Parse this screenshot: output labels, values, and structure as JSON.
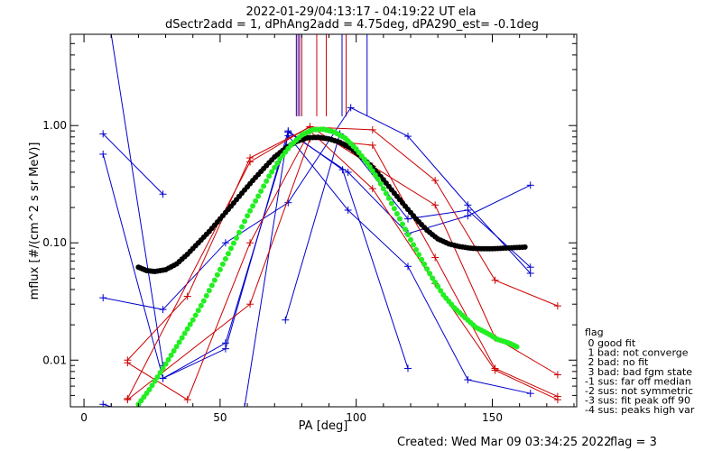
{
  "chart_data": {
    "type": "line",
    "title": "2022-01-29/04:13:17 - 04:19:22 UT ela",
    "subtitle": "dSectr2add = 1, dPhAng2add = 4.75deg, dPA290_est=  -0.1deg",
    "xlabel": "PA [deg]",
    "ylabel": "mflux [#/(cm^2 s sr MeV)]",
    "xlim": [
      -5,
      181
    ],
    "ylim": [
      0.004,
      6.0
    ],
    "yscale": "log",
    "xticks": [
      0,
      50,
      100,
      150
    ],
    "xtick_labels": [
      "0",
      "50",
      "100",
      "150"
    ],
    "yticks": [
      0.01,
      0.1,
      1.0
    ],
    "ytick_labels": [
      "0.01",
      "0.10",
      "1.00"
    ],
    "grid": false,
    "footer_created": "Created: Wed Mar 09 03:34:25 2022",
    "footer_flag": "flag = 3",
    "legend": {
      "placement": "bottom-right",
      "title": "flag",
      "entries": [
        " 0 good fit",
        " 1 bad: not converge",
        " 2 bad: no fit",
        " 3 bad: bad fgm state",
        "-1 sus: far off median",
        "-2 sus: not symmetric",
        "-3 sus: fit peak off 90",
        "-4 sus: peaks high var"
      ]
    },
    "vlines": [
      {
        "x": 78.0,
        "color": "#0000cc"
      },
      {
        "x": 78.6,
        "color": "#cc0000"
      },
      {
        "x": 79.2,
        "color": "#0000cc"
      },
      {
        "x": 80.0,
        "color": "#cc0000"
      },
      {
        "x": 85.5,
        "color": "#cc0000"
      },
      {
        "x": 89.0,
        "color": "#cc0000"
      },
      {
        "x": 94.8,
        "color": "#0000cc"
      },
      {
        "x": 96.3,
        "color": "#cc0000"
      },
      {
        "x": 104.0,
        "color": "#0000cc"
      }
    ],
    "series": [
      {
        "color": "#0000cc",
        "x": [
          7,
          29
        ],
        "y": [
          0.85,
          0.26
        ]
      },
      {
        "color": "#0000cc",
        "x": [
          7,
          29,
          52,
          75,
          95,
          119
        ],
        "y": [
          0.57,
          0.007,
          0.0125,
          0.9,
          0.42,
          0.0085
        ]
      },
      {
        "color": "#0000cc",
        "x": [
          7,
          29,
          52,
          75,
          98,
          119,
          141,
          164
        ],
        "y": [
          0.034,
          0.027,
          0.1,
          0.22,
          1.42,
          0.81,
          0.21,
          0.055
        ]
      },
      {
        "color": "#0000cc",
        "x": [
          10,
          29
        ],
        "y": [
          6.0,
          0.009
        ]
      },
      {
        "color": "#0000cc",
        "x": [
          7,
          10
        ],
        "y": [
          0.0042,
          0.004
        ]
      },
      {
        "color": "#0000cc",
        "x": [
          29,
          52,
          75,
          97,
          119,
          141,
          164
        ],
        "y": [
          0.007,
          0.014,
          0.82,
          0.19,
          0.063,
          0.0068,
          0.0052
        ]
      },
      {
        "color": "#0000cc",
        "x": [
          59,
          75,
          97,
          119,
          141,
          164
        ],
        "y": [
          0.004,
          0.88,
          0.4,
          0.12,
          0.17,
          0.31
        ]
      },
      {
        "color": "#0000cc",
        "x": [
          74,
          94,
          119,
          141,
          164
        ],
        "y": [
          0.022,
          0.85,
          0.16,
          0.19,
          0.062
        ]
      },
      {
        "color": "#cc0000",
        "x": [
          16,
          38,
          61,
          83,
          106,
          129,
          151,
          174
        ],
        "y": [
          0.01,
          0.035,
          0.53,
          0.97,
          0.92,
          0.34,
          0.048,
          0.029
        ]
      },
      {
        "color": "#cc0000",
        "x": [
          16,
          38,
          61,
          83,
          106,
          129,
          151,
          174
        ],
        "y": [
          0.0095,
          0.0046,
          0.1,
          0.9,
          0.29,
          0.045,
          0.0082,
          0.0046
        ]
      },
      {
        "color": "#cc0000",
        "x": [
          16,
          61,
          83,
          106,
          129,
          151,
          174
        ],
        "y": [
          0.0047,
          0.49,
          0.98,
          0.45,
          0.21,
          0.0155,
          0.0075
        ]
      },
      {
        "color": "#cc0000",
        "x": [
          16,
          61,
          83,
          106,
          129,
          151,
          174
        ],
        "y": [
          0.0046,
          0.03,
          0.77,
          0.68,
          0.075,
          0.0085,
          0.0049
        ]
      }
    ],
    "fits": [
      {
        "color": "#000000",
        "x": [
          20,
          23,
          26,
          30,
          34,
          38,
          42,
          46,
          50,
          54,
          58,
          62,
          66,
          70,
          74,
          78,
          82,
          86,
          90,
          94,
          98,
          102,
          106,
          110,
          114,
          118,
          122,
          126,
          130,
          134,
          138,
          142,
          146,
          150,
          154,
          158,
          162
        ],
        "y": [
          0.062,
          0.058,
          0.057,
          0.059,
          0.066,
          0.08,
          0.1,
          0.125,
          0.16,
          0.205,
          0.265,
          0.34,
          0.43,
          0.54,
          0.64,
          0.73,
          0.785,
          0.795,
          0.77,
          0.72,
          0.64,
          0.54,
          0.44,
          0.345,
          0.265,
          0.205,
          0.16,
          0.128,
          0.108,
          0.098,
          0.093,
          0.09,
          0.089,
          0.089,
          0.09,
          0.091,
          0.092
        ]
      },
      {
        "color": "#22ee22",
        "x": [
          20,
          24,
          28,
          32,
          36,
          40,
          44,
          48,
          52,
          56,
          60,
          64,
          68,
          72,
          76,
          80,
          84,
          88,
          92,
          96,
          100,
          104,
          108,
          112,
          116,
          120,
          124,
          128,
          132,
          136,
          140,
          144,
          148,
          152,
          156,
          159
        ],
        "y": [
          0.0042,
          0.0056,
          0.0078,
          0.011,
          0.0155,
          0.022,
          0.032,
          0.048,
          0.073,
          0.11,
          0.17,
          0.25,
          0.37,
          0.52,
          0.68,
          0.83,
          0.92,
          0.93,
          0.88,
          0.78,
          0.63,
          0.48,
          0.35,
          0.24,
          0.16,
          0.106,
          0.072,
          0.05,
          0.036,
          0.028,
          0.023,
          0.019,
          0.017,
          0.015,
          0.014,
          0.013
        ]
      }
    ]
  }
}
